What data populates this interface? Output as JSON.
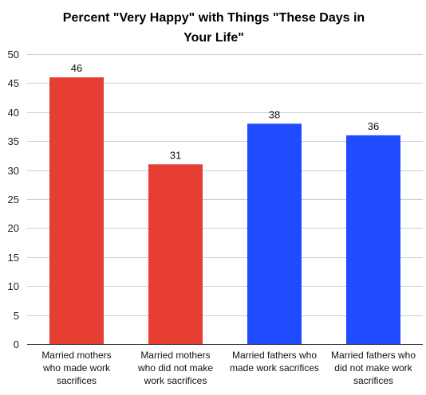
{
  "chart_data": {
    "type": "bar",
    "title_lines": [
      "Percent \"Very Happy\" with Things \"These Days in",
      "Your Life\""
    ],
    "categories": [
      [
        "Married mothers",
        "who made work",
        "sacrifices"
      ],
      [
        "Married mothers",
        "who did not make",
        "work sacrifices"
      ],
      [
        "Married fathers who",
        "made work sacrifices"
      ],
      [
        "Married fathers who",
        "did not make work",
        "sacrifices"
      ]
    ],
    "values": [
      46,
      31,
      38,
      36
    ],
    "bar_colors": [
      "#e63e32",
      "#e63e32",
      "#1f4cff",
      "#1f4cff"
    ],
    "ylim": [
      0,
      50
    ],
    "yticks": [
      0,
      5,
      10,
      15,
      20,
      25,
      30,
      35,
      40,
      45,
      50
    ],
    "grid": true,
    "legend": "none"
  }
}
